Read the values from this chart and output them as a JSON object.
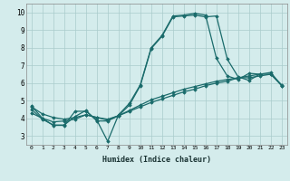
{
  "xlabel": "Humidex (Indice chaleur)",
  "background_color": "#d4ecec",
  "grid_color": "#aacccc",
  "line_color": "#1a6b6b",
  "xlim": [
    -0.5,
    23.5
  ],
  "ylim": [
    2.5,
    10.5
  ],
  "yticks": [
    3,
    4,
    5,
    6,
    7,
    8,
    9,
    10
  ],
  "xticks": [
    0,
    1,
    2,
    3,
    4,
    5,
    6,
    7,
    8,
    9,
    10,
    11,
    12,
    13,
    14,
    15,
    16,
    17,
    18,
    19,
    20,
    21,
    22,
    23
  ],
  "line1_x": [
    0,
    1,
    2,
    3,
    4,
    5,
    6,
    7,
    8,
    9,
    10,
    11,
    12,
    13,
    14,
    15,
    16,
    17,
    18,
    19,
    20,
    21
  ],
  "line1_y": [
    4.7,
    4.0,
    3.6,
    3.6,
    4.4,
    4.4,
    3.9,
    2.7,
    4.2,
    4.85,
    5.9,
    8.0,
    8.7,
    9.8,
    9.85,
    9.95,
    9.85,
    7.4,
    6.4,
    6.2,
    6.55,
    6.5
  ],
  "line2_x": [
    0,
    1,
    2,
    3,
    4,
    5,
    6,
    7,
    8,
    9,
    10,
    11,
    12,
    13,
    14,
    15,
    16,
    17,
    18,
    19,
    20,
    21,
    22,
    23
  ],
  "line2_y": [
    4.5,
    3.95,
    3.62,
    3.62,
    4.1,
    4.45,
    3.85,
    3.85,
    4.15,
    4.75,
    5.85,
    7.95,
    8.65,
    9.75,
    9.8,
    9.85,
    9.75,
    9.8,
    7.35,
    6.35,
    6.15,
    6.5,
    6.5,
    5.9
  ],
  "line3_x": [
    0,
    1,
    2,
    3,
    4,
    5,
    6,
    7,
    8,
    9,
    10,
    11,
    12,
    13,
    14,
    15,
    16,
    17,
    18,
    19,
    20,
    21,
    22,
    23
  ],
  "line3_y": [
    4.3,
    4.0,
    3.8,
    3.85,
    3.95,
    4.2,
    4.05,
    3.9,
    4.15,
    4.45,
    4.75,
    5.05,
    5.25,
    5.45,
    5.65,
    5.8,
    5.95,
    6.1,
    6.2,
    6.3,
    6.3,
    6.4,
    6.5,
    5.85
  ],
  "line4_x": [
    0,
    1,
    2,
    3,
    4,
    5,
    6,
    7,
    8,
    9,
    10,
    11,
    12,
    13,
    14,
    15,
    16,
    17,
    18,
    19,
    20,
    21,
    22,
    23
  ],
  "line4_y": [
    4.65,
    4.25,
    4.05,
    3.95,
    4.05,
    4.2,
    4.05,
    3.95,
    4.15,
    4.4,
    4.65,
    4.9,
    5.1,
    5.3,
    5.5,
    5.65,
    5.85,
    6.0,
    6.1,
    6.3,
    6.4,
    6.5,
    6.6,
    5.85
  ]
}
